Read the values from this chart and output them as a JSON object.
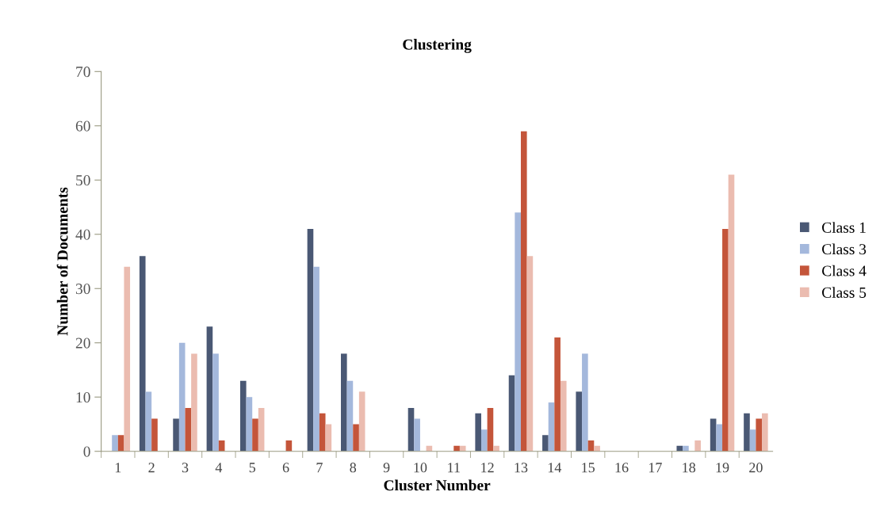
{
  "chart_data": {
    "type": "bar",
    "title": "Clustering",
    "xlabel": "Cluster Number",
    "ylabel": "Number of Documents",
    "categories": [
      "1",
      "2",
      "3",
      "4",
      "5",
      "6",
      "7",
      "8",
      "9",
      "10",
      "11",
      "12",
      "13",
      "14",
      "15",
      "16",
      "17",
      "18",
      "19",
      "20"
    ],
    "series": [
      {
        "name": "Class 1",
        "color": "#4a5874",
        "values": [
          0,
          36,
          6,
          23,
          13,
          0,
          41,
          18,
          0,
          8,
          0,
          7,
          14,
          3,
          11,
          0,
          0,
          1,
          6,
          7
        ]
      },
      {
        "name": "Class 3",
        "color": "#a4b8dc",
        "values": [
          3,
          11,
          20,
          18,
          10,
          0,
          34,
          13,
          0,
          6,
          0,
          4,
          44,
          9,
          18,
          0,
          0,
          1,
          5,
          4
        ]
      },
      {
        "name": "Class 4",
        "color": "#c4553a",
        "values": [
          3,
          6,
          8,
          2,
          6,
          2,
          7,
          5,
          0,
          0,
          1,
          8,
          59,
          21,
          2,
          0,
          0,
          0,
          41,
          6
        ]
      },
      {
        "name": "Class 5",
        "color": "#ebbcb0",
        "values": [
          34,
          0,
          18,
          0,
          8,
          0,
          5,
          11,
          0,
          1,
          1,
          1,
          36,
          13,
          1,
          0,
          0,
          2,
          51,
          7
        ]
      }
    ],
    "ylim": [
      0,
      70
    ],
    "yticks": [
      0,
      10,
      20,
      30,
      40,
      50,
      60,
      70
    ],
    "grid": false,
    "legend": "right"
  }
}
